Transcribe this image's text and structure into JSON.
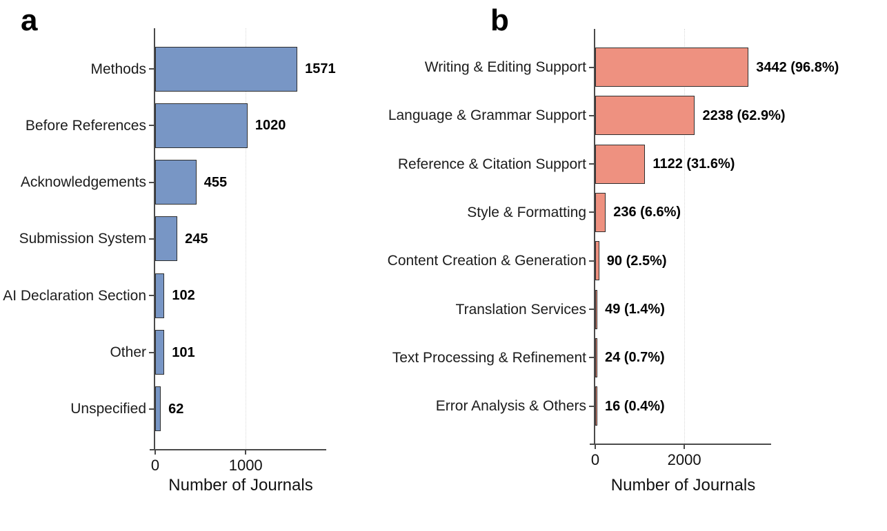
{
  "figure": {
    "background_color": "#ffffff",
    "axis_color": "#4a4a4a",
    "grid_color": "#d8d8d8",
    "text_color": "#1c1c1c"
  },
  "chart_data": [
    {
      "type": "bar",
      "orientation": "horizontal",
      "panel_label": "a",
      "categories": [
        "Methods",
        "Before References",
        "Acknowledgements",
        "Submission System",
        "AI Declaration Section",
        "Other",
        "Unspecified"
      ],
      "values": [
        1571,
        1020,
        455,
        245,
        102,
        101,
        62
      ],
      "value_labels": [
        "1571",
        "1020",
        "455",
        "245",
        "102",
        "101",
        "62"
      ],
      "xlabel": "Number of Journals",
      "ylabel": "",
      "xlim": [
        0,
        1890
      ],
      "xticks": [
        {
          "value": 0,
          "label": "0"
        },
        {
          "value": 1000,
          "label": "1000"
        }
      ],
      "gridlines_at": [
        1000
      ],
      "grid_style": "dotted-vertical",
      "legend": "none",
      "bar_color": "#7896c5",
      "bar_border_color": "#2e2e2e"
    },
    {
      "type": "bar",
      "orientation": "horizontal",
      "panel_label": "b",
      "categories": [
        "Writing & Editing Support",
        "Language & Grammar Support",
        "Reference & Citation Support",
        "Style & Formatting",
        "Content Creation & Generation",
        "Translation Services",
        "Text Processing & Refinement",
        "Error Analysis & Others"
      ],
      "values": [
        3442,
        2238,
        1122,
        236,
        90,
        49,
        24,
        16
      ],
      "value_labels": [
        "3442 (96.8%)",
        "2238 (62.9%)",
        "1122 (31.6%)",
        "236 (6.6%)",
        "90 (2.5%)",
        "49 (1.4%)",
        "24 (0.7%)",
        "16 (0.4%)"
      ],
      "xlabel": "Number of Journals",
      "ylabel": "",
      "xlim": [
        0,
        3950
      ],
      "xticks": [
        {
          "value": 0,
          "label": "0"
        },
        {
          "value": 2000,
          "label": "2000"
        }
      ],
      "gridlines_at": [
        2000
      ],
      "grid_style": "dotted-vertical",
      "legend": "none",
      "bar_color": "#ee9180",
      "bar_border_color": "#2e2e2e"
    }
  ]
}
